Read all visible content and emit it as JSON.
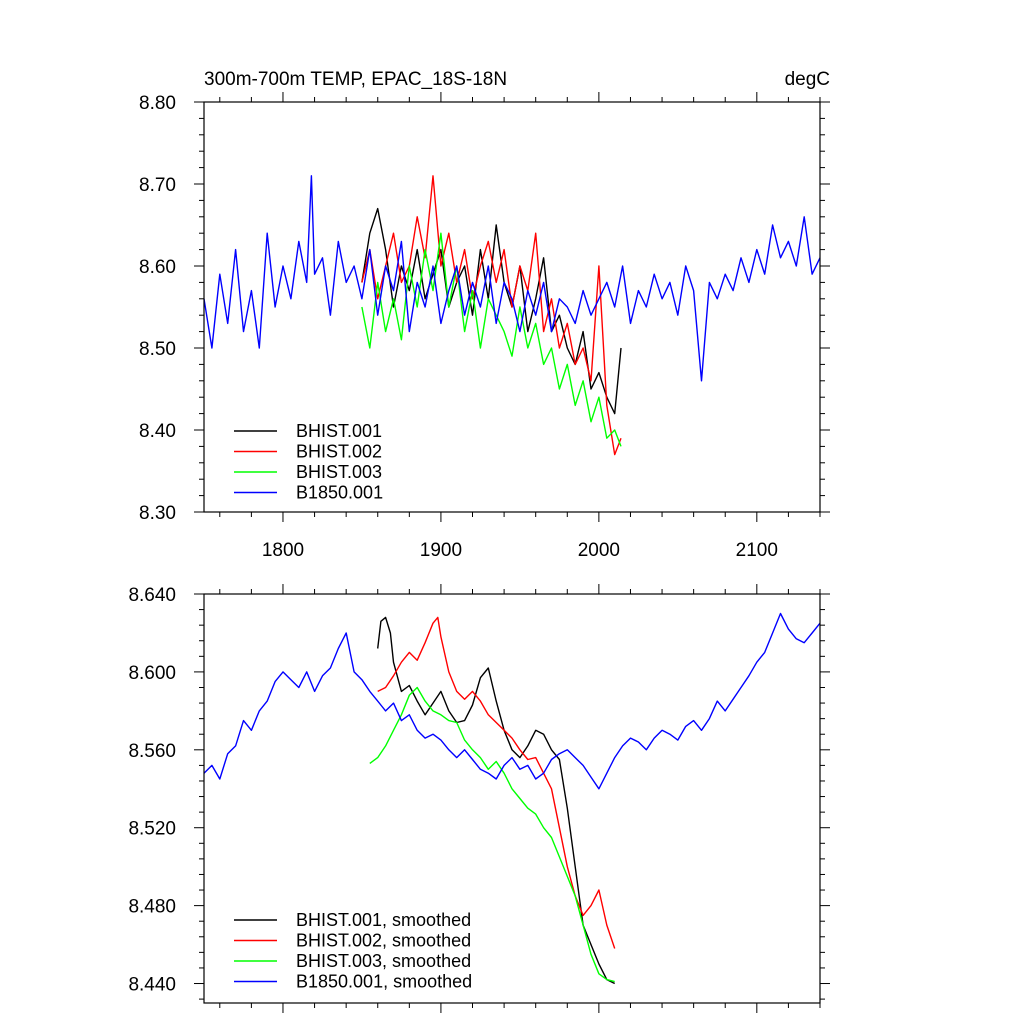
{
  "chart_data": [
    {
      "type": "line",
      "title_left": "300m-700m TEMP, EPAC_18S-18N",
      "title_right": "degC",
      "xlim": [
        1750,
        2140
      ],
      "ylim": [
        8.3,
        8.8
      ],
      "x_ticks": [
        1800,
        1900,
        2000,
        2100
      ],
      "x_tick_labels": [
        "1800",
        "1900",
        "2000",
        "2100"
      ],
      "y_ticks": [
        8.3,
        8.4,
        8.5,
        8.6,
        8.7,
        8.8
      ],
      "y_tick_labels": [
        "8.30",
        "8.40",
        "8.50",
        "8.60",
        "8.70",
        "8.80"
      ],
      "legend_position": "bottom-left",
      "series": [
        {
          "name": "BHIST.001",
          "color": "#000000",
          "x": [
            1850,
            1855,
            1860,
            1865,
            1870,
            1875,
            1880,
            1885,
            1890,
            1895,
            1900,
            1905,
            1910,
            1915,
            1920,
            1925,
            1930,
            1935,
            1940,
            1945,
            1950,
            1955,
            1960,
            1965,
            1970,
            1975,
            1980,
            1985,
            1990,
            1995,
            2000,
            2005,
            2010,
            2014
          ],
          "y": [
            8.58,
            8.64,
            8.67,
            8.62,
            8.55,
            8.6,
            8.57,
            8.62,
            8.56,
            8.59,
            8.62,
            8.55,
            8.58,
            8.6,
            8.54,
            8.62,
            8.56,
            8.65,
            8.58,
            8.55,
            8.6,
            8.52,
            8.56,
            8.61,
            8.52,
            8.54,
            8.5,
            8.48,
            8.52,
            8.45,
            8.47,
            8.44,
            8.42,
            8.5
          ]
        },
        {
          "name": "BHIST.002",
          "color": "#ff0000",
          "x": [
            1850,
            1855,
            1860,
            1865,
            1870,
            1875,
            1880,
            1885,
            1890,
            1895,
            1900,
            1905,
            1910,
            1915,
            1920,
            1925,
            1930,
            1935,
            1940,
            1945,
            1950,
            1955,
            1960,
            1965,
            1970,
            1975,
            1980,
            1985,
            1990,
            1995,
            2000,
            2005,
            2010,
            2014
          ],
          "y": [
            8.58,
            8.62,
            8.56,
            8.6,
            8.64,
            8.58,
            8.6,
            8.66,
            8.61,
            8.71,
            8.6,
            8.64,
            8.58,
            8.62,
            8.56,
            8.6,
            8.63,
            8.58,
            8.62,
            8.55,
            8.6,
            8.57,
            8.64,
            8.52,
            8.56,
            8.5,
            8.53,
            8.48,
            8.5,
            8.46,
            8.6,
            8.43,
            8.37,
            8.39
          ]
        },
        {
          "name": "BHIST.003",
          "color": "#00ff00",
          "x": [
            1850,
            1855,
            1860,
            1865,
            1870,
            1875,
            1880,
            1885,
            1890,
            1895,
            1900,
            1905,
            1910,
            1915,
            1920,
            1925,
            1930,
            1935,
            1940,
            1945,
            1950,
            1955,
            1960,
            1965,
            1970,
            1975,
            1980,
            1985,
            1990,
            1995,
            2000,
            2005,
            2010,
            2014
          ],
          "y": [
            8.55,
            8.5,
            8.58,
            8.52,
            8.56,
            8.51,
            8.6,
            8.55,
            8.62,
            8.57,
            8.64,
            8.55,
            8.6,
            8.52,
            8.57,
            8.5,
            8.56,
            8.54,
            8.52,
            8.49,
            8.55,
            8.5,
            8.53,
            8.48,
            8.5,
            8.45,
            8.48,
            8.43,
            8.46,
            8.41,
            8.44,
            8.39,
            8.4,
            8.38
          ]
        },
        {
          "name": "B1850.001",
          "color": "#0000ff",
          "x": [
            1750,
            1755,
            1760,
            1765,
            1770,
            1775,
            1780,
            1785,
            1790,
            1795,
            1800,
            1805,
            1810,
            1815,
            1818,
            1820,
            1825,
            1830,
            1835,
            1840,
            1845,
            1850,
            1855,
            1860,
            1865,
            1870,
            1875,
            1880,
            1885,
            1890,
            1895,
            1900,
            1905,
            1910,
            1915,
            1920,
            1925,
            1930,
            1935,
            1940,
            1945,
            1950,
            1955,
            1960,
            1965,
            1970,
            1975,
            1980,
            1985,
            1990,
            1995,
            2000,
            2005,
            2010,
            2015,
            2020,
            2025,
            2030,
            2035,
            2040,
            2045,
            2050,
            2055,
            2060,
            2065,
            2070,
            2075,
            2080,
            2085,
            2090,
            2095,
            2100,
            2105,
            2110,
            2115,
            2120,
            2125,
            2130,
            2135,
            2140
          ],
          "y": [
            8.56,
            8.5,
            8.59,
            8.53,
            8.62,
            8.52,
            8.57,
            8.5,
            8.64,
            8.55,
            8.6,
            8.56,
            8.63,
            8.58,
            8.71,
            8.59,
            8.61,
            8.54,
            8.63,
            8.58,
            8.6,
            8.56,
            8.62,
            8.54,
            8.6,
            8.57,
            8.63,
            8.52,
            8.58,
            8.55,
            8.6,
            8.53,
            8.57,
            8.6,
            8.54,
            8.58,
            8.55,
            8.6,
            8.53,
            8.58,
            8.56,
            8.52,
            8.57,
            8.54,
            8.58,
            8.52,
            8.56,
            8.55,
            8.53,
            8.57,
            8.54,
            8.56,
            8.58,
            8.55,
            8.6,
            8.53,
            8.57,
            8.55,
            8.59,
            8.56,
            8.58,
            8.54,
            8.6,
            8.57,
            8.46,
            8.58,
            8.56,
            8.59,
            8.57,
            8.61,
            8.58,
            8.62,
            8.59,
            8.65,
            8.61,
            8.63,
            8.6,
            8.66,
            8.59,
            8.61
          ]
        }
      ]
    },
    {
      "type": "line",
      "xlim": [
        1750,
        2140
      ],
      "ylim": [
        8.43,
        8.64
      ],
      "x_ticks": [
        1800,
        1900,
        2000,
        2100
      ],
      "y_ticks": [
        8.44,
        8.48,
        8.52,
        8.56,
        8.6,
        8.64
      ],
      "y_tick_labels": [
        "8.440",
        "8.480",
        "8.520",
        "8.560",
        "8.600",
        "8.640"
      ],
      "legend_position": "bottom-left",
      "series": [
        {
          "name": "BHIST.001, smoothed",
          "color": "#000000",
          "x": [
            1860,
            1862,
            1865,
            1868,
            1870,
            1875,
            1880,
            1885,
            1890,
            1895,
            1900,
            1905,
            1910,
            1915,
            1920,
            1925,
            1930,
            1935,
            1940,
            1945,
            1950,
            1955,
            1960,
            1965,
            1970,
            1975,
            1980,
            1985,
            1990,
            1995,
            2000,
            2005,
            2010
          ],
          "y": [
            8.612,
            8.626,
            8.628,
            8.62,
            8.605,
            8.59,
            8.593,
            8.585,
            8.578,
            8.584,
            8.59,
            8.58,
            8.574,
            8.575,
            8.583,
            8.597,
            8.602,
            8.585,
            8.57,
            8.56,
            8.556,
            8.562,
            8.57,
            8.568,
            8.56,
            8.555,
            8.53,
            8.5,
            8.47,
            8.46,
            8.45,
            8.442,
            8.44
          ]
        },
        {
          "name": "BHIST.002, smoothed",
          "color": "#ff0000",
          "x": [
            1860,
            1865,
            1870,
            1875,
            1880,
            1885,
            1890,
            1895,
            1898,
            1900,
            1905,
            1910,
            1915,
            1920,
            1925,
            1930,
            1935,
            1940,
            1945,
            1950,
            1955,
            1960,
            1965,
            1970,
            1975,
            1980,
            1985,
            1990,
            1995,
            2000,
            2005,
            2010
          ],
          "y": [
            8.59,
            8.592,
            8.598,
            8.605,
            8.61,
            8.606,
            8.615,
            8.625,
            8.628,
            8.618,
            8.6,
            8.59,
            8.586,
            8.59,
            8.585,
            8.578,
            8.574,
            8.57,
            8.566,
            8.56,
            8.555,
            8.556,
            8.548,
            8.54,
            8.52,
            8.5,
            8.485,
            8.475,
            8.48,
            8.488,
            8.47,
            8.458
          ]
        },
        {
          "name": "BHIST.003, smoothed",
          "color": "#00ff00",
          "x": [
            1855,
            1860,
            1865,
            1870,
            1875,
            1880,
            1885,
            1890,
            1895,
            1900,
            1905,
            1910,
            1915,
            1920,
            1925,
            1930,
            1935,
            1940,
            1945,
            1950,
            1955,
            1960,
            1965,
            1970,
            1975,
            1980,
            1985,
            1990,
            1995,
            2000,
            2005,
            2010
          ],
          "y": [
            8.553,
            8.556,
            8.562,
            8.57,
            8.578,
            8.588,
            8.592,
            8.585,
            8.58,
            8.578,
            8.575,
            8.574,
            8.565,
            8.56,
            8.556,
            8.55,
            8.554,
            8.548,
            8.54,
            8.535,
            8.53,
            8.527,
            8.52,
            8.515,
            8.505,
            8.495,
            8.485,
            8.47,
            8.455,
            8.445,
            8.442,
            8.441
          ]
        },
        {
          "name": "B1850.001, smoothed",
          "color": "#0000ff",
          "x": [
            1750,
            1755,
            1760,
            1765,
            1770,
            1775,
            1780,
            1785,
            1790,
            1795,
            1800,
            1805,
            1810,
            1815,
            1820,
            1825,
            1830,
            1835,
            1840,
            1845,
            1850,
            1855,
            1860,
            1865,
            1870,
            1875,
            1880,
            1885,
            1890,
            1895,
            1900,
            1905,
            1910,
            1915,
            1920,
            1925,
            1930,
            1935,
            1940,
            1945,
            1950,
            1955,
            1960,
            1965,
            1970,
            1975,
            1980,
            1985,
            1990,
            1995,
            2000,
            2005,
            2010,
            2015,
            2020,
            2025,
            2030,
            2035,
            2040,
            2045,
            2050,
            2055,
            2060,
            2065,
            2070,
            2075,
            2080,
            2085,
            2090,
            2095,
            2100,
            2105,
            2110,
            2115,
            2120,
            2125,
            2130,
            2135,
            2140
          ],
          "y": [
            8.548,
            8.552,
            8.545,
            8.558,
            8.562,
            8.575,
            8.57,
            8.58,
            8.585,
            8.595,
            8.6,
            8.596,
            8.592,
            8.6,
            8.59,
            8.598,
            8.602,
            8.612,
            8.62,
            8.6,
            8.596,
            8.59,
            8.585,
            8.58,
            8.584,
            8.575,
            8.578,
            8.57,
            8.566,
            8.568,
            8.565,
            8.56,
            8.556,
            8.56,
            8.555,
            8.55,
            8.548,
            8.545,
            8.552,
            8.556,
            8.55,
            8.552,
            8.545,
            8.548,
            8.555,
            8.558,
            8.56,
            8.556,
            8.552,
            8.546,
            8.54,
            8.548,
            8.556,
            8.562,
            8.566,
            8.564,
            8.56,
            8.566,
            8.57,
            8.568,
            8.565,
            8.572,
            8.575,
            8.57,
            8.576,
            8.585,
            8.58,
            8.586,
            8.592,
            8.598,
            8.605,
            8.61,
            8.62,
            8.63,
            8.622,
            8.617,
            8.615,
            8.62,
            8.625
          ]
        }
      ]
    }
  ]
}
